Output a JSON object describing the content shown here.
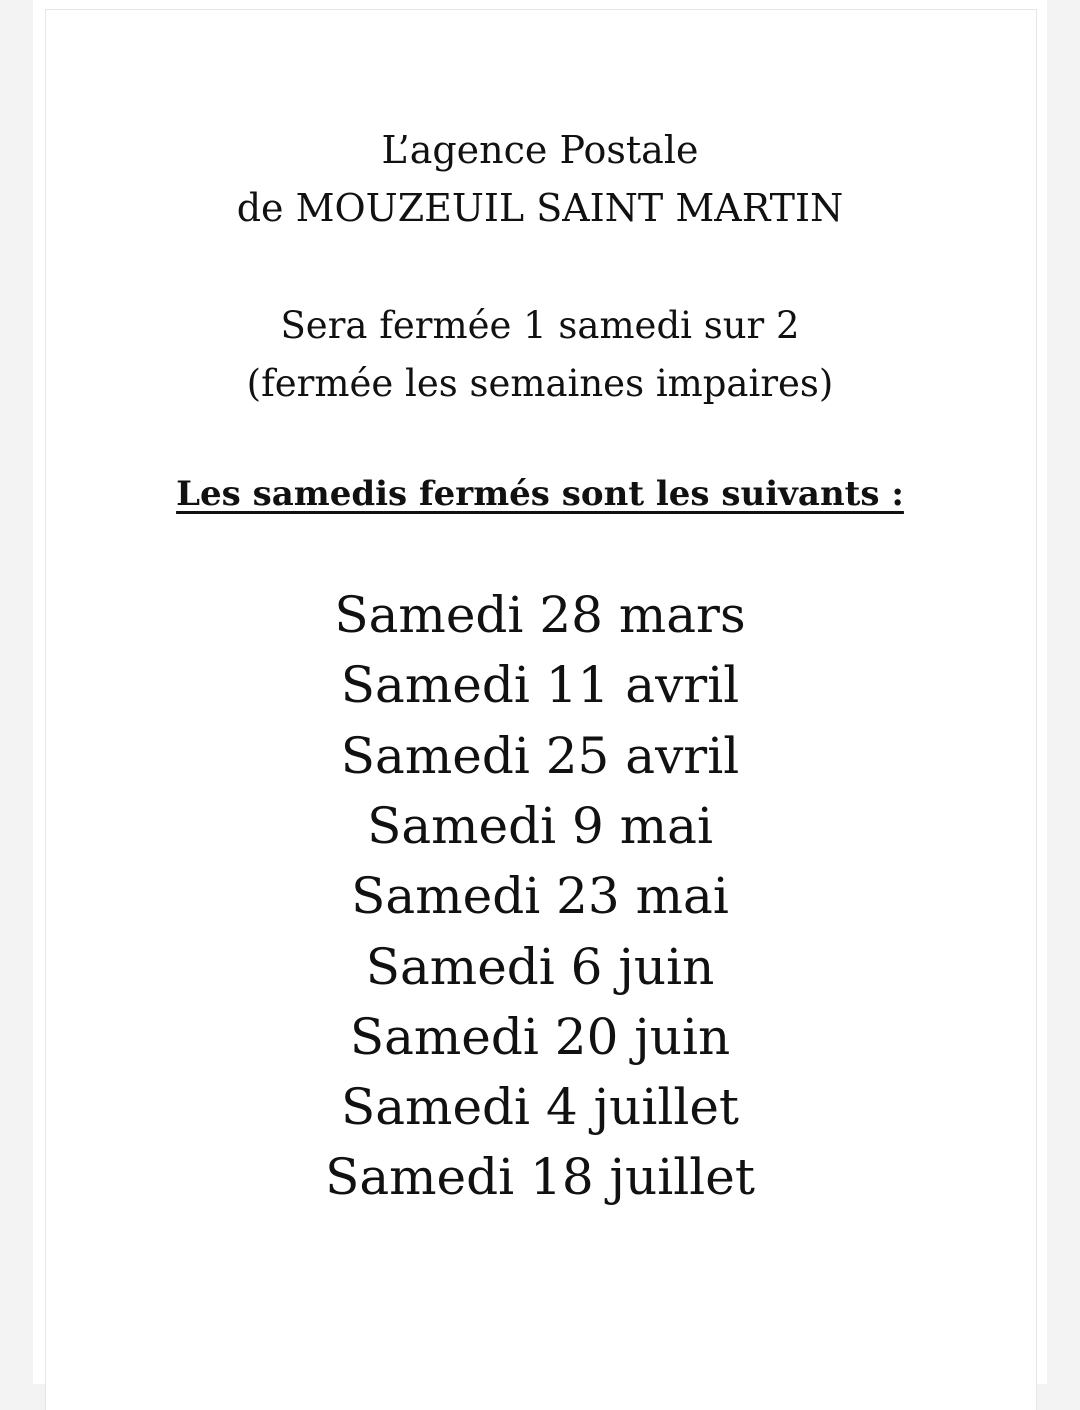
{
  "title_lines": [
    "L’agence Postale",
    "de MOUZEUIL SAINT MARTIN"
  ],
  "notice_lines": [
    "Sera fermée 1 samedi sur 2",
    "(fermée les semaines impaires)"
  ],
  "list_heading": "Les samedis fermés sont les suivants :",
  "closed_saturdays": [
    "Samedi 28 mars",
    "Samedi 11 avril",
    "Samedi 25 avril",
    "Samedi 9 mai",
    "Samedi 23 mai",
    "Samedi 6 juin",
    "Samedi 20 juin",
    "Samedi 4 juillet",
    "Samedi 18 juillet"
  ]
}
